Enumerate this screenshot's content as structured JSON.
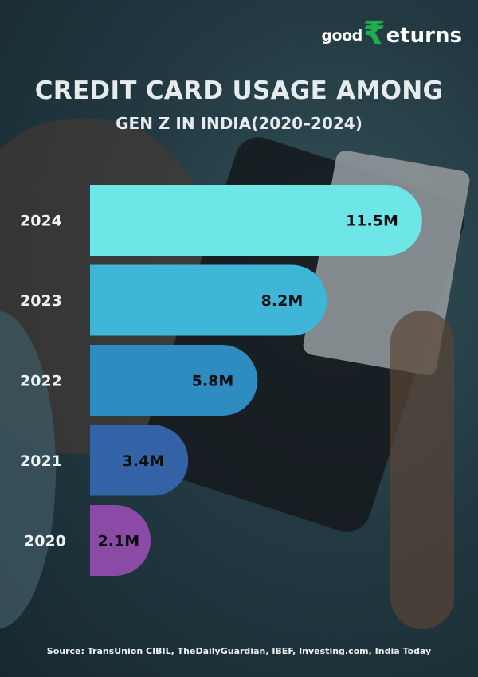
{
  "logo": {
    "text": "goodReturns",
    "part1": "good",
    "symbol": "₹",
    "part2": "eturns",
    "accent": "#1fae4b"
  },
  "title": "CREDIT CARD USAGE AMONG",
  "subtitle": "GEN Z IN INDIA(2020–2024)",
  "source": "Source: TransUnion CIBIL, TheDailyGuardian, IBEF, Investing.com, India Today",
  "chart_data": {
    "type": "bar",
    "orientation": "horizontal",
    "title": "CREDIT CARD USAGE AMONG GEN Z IN INDIA(2020–2024)",
    "categories": [
      "2024",
      "2023",
      "2022",
      "2021",
      "2020"
    ],
    "values": [
      11.5,
      8.2,
      5.8,
      3.4,
      2.1
    ],
    "labels": [
      "11.5M",
      "8.2M",
      "5.8M",
      "3.4M",
      "2.1M"
    ],
    "unit": "M",
    "colors": [
      "#6ee6e8",
      "#3fb6d8",
      "#2f8cc0",
      "#3363a6",
      "#8a4aa6"
    ],
    "grid": false,
    "legend": "none"
  }
}
